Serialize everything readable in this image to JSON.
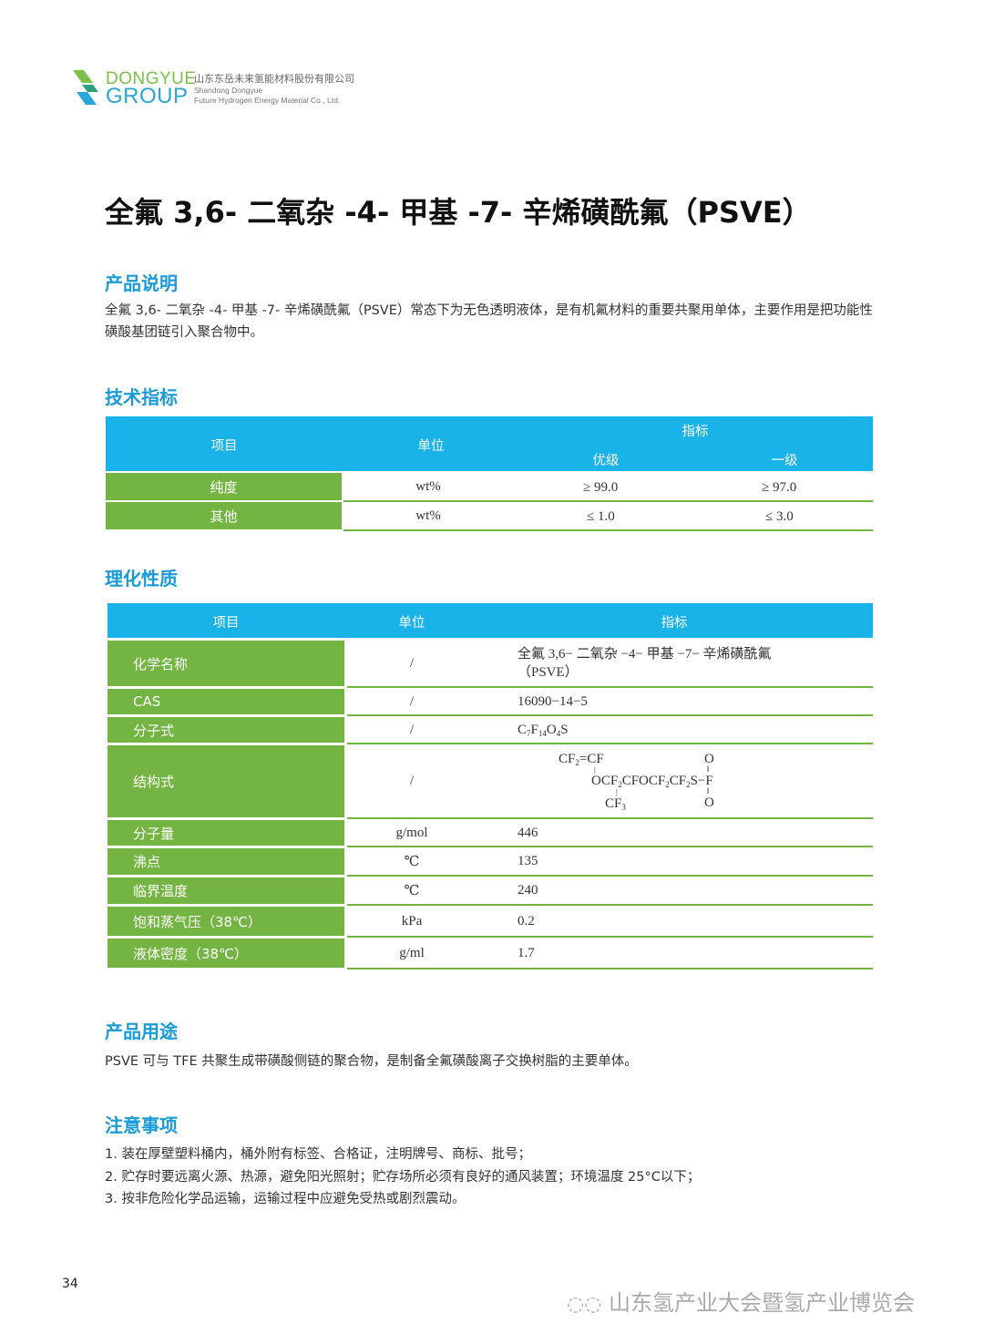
{
  "header": {
    "brand_line1": "DONGYUE",
    "brand_line2": "GROUP",
    "company_cn": "山东东岳未来氢能材料股份有限公司",
    "company_en1": "Shandong Dongyue",
    "company_en2": "Future Hydrogen Energy Material Co., Ltd."
  },
  "title": "全氟 3,6- 二氧杂 -4- 甲基 -7- 辛烯磺酰氟（PSVE）",
  "desc": {
    "heading": "产品说明",
    "text": "全氟 3,6- 二氧杂 -4- 甲基 -7- 辛烯磺酰氟（PSVE）常态下为无色透明液体，是有机氟材料的重要共聚用单体，主要作用是把功能性磺酸基团链引入聚合物中。"
  },
  "spec": {
    "heading": "技术指标",
    "headers": {
      "item": "项目",
      "unit": "单位",
      "index": "指标",
      "grade1": "优级",
      "grade2": "一级"
    },
    "rows": [
      {
        "item": "纯度",
        "unit": "wt%",
        "g1": "≥ 99.0",
        "g2": "≥ 97.0"
      },
      {
        "item": "其他",
        "unit": "wt%",
        "g1": "≤ 1.0",
        "g2": "≤ 3.0"
      }
    ]
  },
  "props": {
    "heading": "理化性质",
    "headers": {
      "item": "项目",
      "unit": "单位",
      "value": "指标"
    },
    "rows": [
      {
        "item": "化学名称",
        "unit": "/",
        "value": "全氟 3,6− 二氧杂 −4− 甲基 −7− 辛烯磺酰氟",
        "value2": "（PSVE）"
      },
      {
        "item": "CAS",
        "unit": "/",
        "value": "16090−14−5"
      },
      {
        "item": "分子式",
        "unit": "/",
        "value": "C7F14O4S"
      },
      {
        "item": "结构式",
        "unit": "/",
        "value": "CF2=CF–OCF2CFOCF2CF2SO2F (CF3 branch)"
      },
      {
        "item": "分子量",
        "unit": "g/mol",
        "value": "446"
      },
      {
        "item": "沸点",
        "unit": "℃",
        "value": "135"
      },
      {
        "item": "临界温度",
        "unit": "℃",
        "value": "240"
      },
      {
        "item": "饱和蒸气压（38℃）",
        "unit": "kPa",
        "value": "0.2"
      },
      {
        "item": "液体密度（38℃）",
        "unit": "g/ml",
        "value": "1.7"
      }
    ]
  },
  "use": {
    "heading": "产品用途",
    "text": "PSVE 可与 TFE 共聚生成带磺酸侧链的聚合物，是制备全氟磺酸离子交换树脂的主要单体。"
  },
  "notes": {
    "heading": "注意事项",
    "items": [
      "1. 装在厚壁塑料桶内，桶外附有标签、合格证，注明牌号、商标、批号；",
      "2. 贮存时要远离火源、热源，避免阳光照射；贮存场所必须有良好的通风装置；环境温度 25°C以下；",
      "3. 按非危险化学品运输，运输过程中应避免受热或剧烈震动。"
    ]
  },
  "page_number": "34",
  "watermark": "山东氢产业大会暨氢产业博览会",
  "colors": {
    "header_blue": "#19b3ea",
    "green": "#74b443",
    "heading_blue": "#1a9ad6"
  }
}
